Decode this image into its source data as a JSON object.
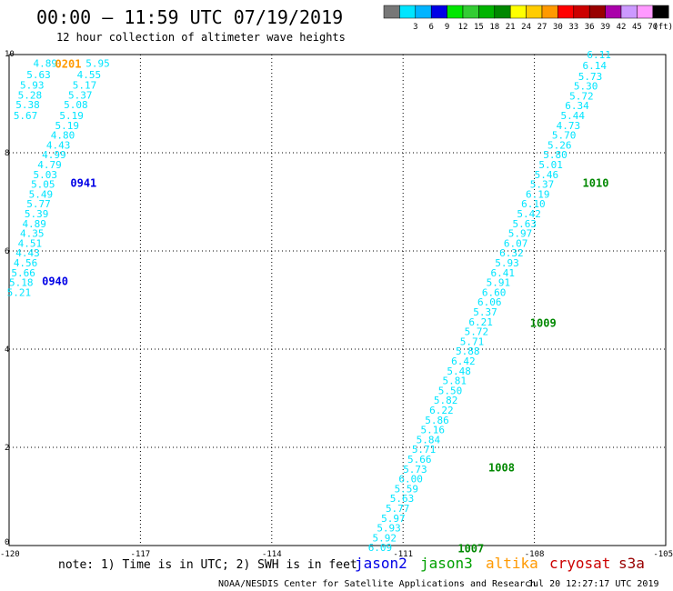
{
  "header": {
    "title": "00:00 – 11:59 UTC 07/19/2019",
    "subtitle": "12 hour collection of altimeter wave heights"
  },
  "colorbar": {
    "unit": "(ft)",
    "bins": [
      {
        "color": "#777777",
        "label": ""
      },
      {
        "color": "#00e5ff",
        "label": "3"
      },
      {
        "color": "#00b4ff",
        "label": "6"
      },
      {
        "color": "#0000e6",
        "label": "9"
      },
      {
        "color": "#00e600",
        "label": "12"
      },
      {
        "color": "#33cc33",
        "label": "15"
      },
      {
        "color": "#00b400",
        "label": "18"
      },
      {
        "color": "#008800",
        "label": "21"
      },
      {
        "color": "#ffff00",
        "label": "24"
      },
      {
        "color": "#ffcc00",
        "label": "27"
      },
      {
        "color": "#ff9900",
        "label": "30"
      },
      {
        "color": "#ff0000",
        "label": "33"
      },
      {
        "color": "#cc0000",
        "label": "36"
      },
      {
        "color": "#990000",
        "label": "39"
      },
      {
        "color": "#aa00aa",
        "label": "42"
      },
      {
        "color": "#cc99ff",
        "label": "45"
      },
      {
        "color": "#ff99ff",
        "label": "70"
      },
      {
        "color": "#000000",
        "label": ""
      }
    ]
  },
  "axes": {
    "x_ticks": [
      "-120",
      "-117",
      "-114",
      "-111",
      "-108",
      "-105"
    ],
    "x_values": [
      -120,
      -117,
      -114,
      -111,
      -108,
      -105
    ],
    "y_ticks": [
      "0",
      "2",
      "4",
      "6",
      "8",
      "10"
    ],
    "y_values": [
      0,
      2,
      4,
      6,
      8,
      10
    ],
    "lon_range": [
      -120,
      -105
    ],
    "lat_range": [
      0,
      10
    ]
  },
  "passes": [
    {
      "color": "#00e5ff",
      "rows": [
        {
          "lat": 9.82,
          "labels": [
            [
              "-119.45",
              "4.89"
            ],
            [
              "-118.25",
              "5.95"
            ]
          ]
        },
        {
          "lat": 9.59,
          "labels": [
            [
              "-119.60",
              "5.63"
            ],
            [
              "-118.45",
              "4.55"
            ]
          ]
        },
        {
          "lat": 9.38,
          "labels": [
            [
              "-119.75",
              "5.93"
            ],
            [
              "-118.55",
              "5.17"
            ]
          ]
        },
        {
          "lat": 9.18,
          "labels": [
            [
              "-119.80",
              "5.28"
            ],
            [
              "-118.65",
              "5.37"
            ]
          ]
        },
        {
          "lat": 8.98,
          "labels": [
            [
              "-119.85",
              "5.38"
            ],
            [
              "-118.75",
              "5.08"
            ]
          ]
        },
        {
          "lat": 8.76,
          "labels": [
            [
              "-119.90",
              "5.67"
            ],
            [
              "-118.85",
              "5.19"
            ]
          ]
        },
        {
          "lat": 8.56,
          "labels": [
            [
              "-118.95",
              "5.19"
            ]
          ]
        },
        {
          "lat": 8.36,
          "labels": [
            [
              "-119.05",
              "4.80"
            ]
          ]
        },
        {
          "lat": 8.16,
          "labels": [
            [
              "-119.15",
              "4.43"
            ]
          ]
        },
        {
          "lat": 7.96,
          "labels": [
            [
              "-119.25",
              "4.99"
            ]
          ]
        },
        {
          "lat": 7.76,
          "labels": [
            [
              "-119.35",
              "4.79"
            ]
          ]
        },
        {
          "lat": 7.56,
          "labels": [
            [
              "-119.45",
              "5.03"
            ]
          ]
        },
        {
          "lat": 7.36,
          "labels": [
            [
              "-119.50",
              "5.05"
            ]
          ]
        },
        {
          "lat": 7.16,
          "labels": [
            [
              "-119.55",
              "5.49"
            ]
          ]
        },
        {
          "lat": 6.96,
          "labels": [
            [
              "-119.60",
              "5.77"
            ]
          ]
        },
        {
          "lat": 6.76,
          "labels": [
            [
              "-119.65",
              "5.39"
            ]
          ]
        },
        {
          "lat": 6.56,
          "labels": [
            [
              "-119.70",
              "4.89"
            ]
          ]
        },
        {
          "lat": 6.36,
          "labels": [
            [
              "-119.75",
              "4.35"
            ]
          ]
        },
        {
          "lat": 6.16,
          "labels": [
            [
              "-119.80",
              "4.51"
            ]
          ]
        },
        {
          "lat": 5.96,
          "labels": [
            [
              "-119.85",
              "4.43"
            ]
          ]
        },
        {
          "lat": 5.76,
          "labels": [
            [
              "-119.90",
              "4.56"
            ]
          ]
        },
        {
          "lat": 5.56,
          "labels": [
            [
              "-119.95",
              "5.66"
            ]
          ]
        },
        {
          "lat": 5.36,
          "labels": [
            [
              "-120.00",
              "5.18"
            ]
          ]
        },
        {
          "lat": 5.16,
          "labels": [
            [
              "-120.05",
              "5.21"
            ]
          ]
        }
      ]
    },
    {
      "color": "#00e5ff",
      "rows": [
        {
          "lat": 10.0,
          "labels": [
            [
              "-106.8",
              "6.11"
            ]
          ]
        },
        {
          "lat": 9.78,
          "labels": [
            [
              "-106.9",
              "6.14"
            ]
          ]
        },
        {
          "lat": 9.56,
          "labels": [
            [
              "-107.0",
              "5.73"
            ]
          ]
        },
        {
          "lat": 9.36,
          "labels": [
            [
              "-107.1",
              "5.30"
            ]
          ]
        },
        {
          "lat": 9.16,
          "labels": [
            [
              "-107.2",
              "5.72"
            ]
          ]
        },
        {
          "lat": 8.96,
          "labels": [
            [
              "-107.3",
              "6.34"
            ]
          ]
        },
        {
          "lat": 8.76,
          "labels": [
            [
              "-107.4",
              "5.44"
            ]
          ]
        },
        {
          "lat": 8.56,
          "labels": [
            [
              "-107.5",
              "4.73"
            ]
          ]
        },
        {
          "lat": 8.36,
          "labels": [
            [
              "-107.6",
              "5.70"
            ]
          ]
        },
        {
          "lat": 8.16,
          "labels": [
            [
              "-107.7",
              "5.26"
            ]
          ]
        },
        {
          "lat": 7.96,
          "labels": [
            [
              "-107.8",
              "5.80"
            ]
          ]
        },
        {
          "lat": 7.76,
          "labels": [
            [
              "-107.9",
              "5.01"
            ]
          ]
        },
        {
          "lat": 7.56,
          "labels": [
            [
              "-108.0",
              "5.46"
            ]
          ]
        },
        {
          "lat": 7.36,
          "labels": [
            [
              "-108.1",
              "5.37"
            ]
          ]
        },
        {
          "lat": 7.16,
          "labels": [
            [
              "-108.2",
              "6.19"
            ]
          ]
        },
        {
          "lat": 6.96,
          "labels": [
            [
              "-108.3",
              "6.10"
            ]
          ]
        },
        {
          "lat": 6.76,
          "labels": [
            [
              "-108.4",
              "5.42"
            ]
          ]
        },
        {
          "lat": 6.56,
          "labels": [
            [
              "-108.5",
              "5.63"
            ]
          ]
        },
        {
          "lat": 6.36,
          "labels": [
            [
              "-108.6",
              "5.97"
            ]
          ]
        },
        {
          "lat": 6.16,
          "labels": [
            [
              "-108.7",
              "6.07"
            ]
          ]
        },
        {
          "lat": 5.96,
          "labels": [
            [
              "-108.8",
              "6.32"
            ]
          ]
        },
        {
          "lat": 5.76,
          "labels": [
            [
              "-108.9",
              "5.93"
            ]
          ]
        },
        {
          "lat": 5.56,
          "labels": [
            [
              "-109.0",
              "6.41"
            ]
          ]
        },
        {
          "lat": 5.36,
          "labels": [
            [
              "-109.1",
              "5.91"
            ]
          ]
        },
        {
          "lat": 5.16,
          "labels": [
            [
              "-109.2",
              "6.60"
            ]
          ]
        },
        {
          "lat": 4.96,
          "labels": [
            [
              "-109.3",
              "6.06"
            ]
          ]
        },
        {
          "lat": 4.76,
          "labels": [
            [
              "-109.4",
              "5.37"
            ]
          ]
        },
        {
          "lat": 4.56,
          "labels": [
            [
              "-109.5",
              "6.21"
            ]
          ]
        },
        {
          "lat": 4.36,
          "labels": [
            [
              "-109.6",
              "5.72"
            ]
          ]
        },
        {
          "lat": 4.16,
          "labels": [
            [
              "-109.7",
              "5.71"
            ]
          ]
        },
        {
          "lat": 3.96,
          "labels": [
            [
              "-109.8",
              "5.88"
            ]
          ]
        },
        {
          "lat": 3.76,
          "labels": [
            [
              "-109.9",
              "6.42"
            ]
          ]
        },
        {
          "lat": 3.56,
          "labels": [
            [
              "-110.0",
              "5.48"
            ]
          ]
        },
        {
          "lat": 3.36,
          "labels": [
            [
              "-110.1",
              "5.81"
            ]
          ]
        },
        {
          "lat": 3.16,
          "labels": [
            [
              "-110.2",
              "5.50"
            ]
          ]
        },
        {
          "lat": 2.96,
          "labels": [
            [
              "-110.3",
              "5.82"
            ]
          ]
        },
        {
          "lat": 2.76,
          "labels": [
            [
              "-110.4",
              "6.22"
            ]
          ]
        },
        {
          "lat": 2.56,
          "labels": [
            [
              "-110.5",
              "5.86"
            ]
          ]
        },
        {
          "lat": 2.36,
          "labels": [
            [
              "-110.6",
              "5.16"
            ]
          ]
        },
        {
          "lat": 2.16,
          "labels": [
            [
              "-110.7",
              "5.84"
            ]
          ]
        },
        {
          "lat": 1.96,
          "labels": [
            [
              "-110.8",
              "5.71"
            ]
          ]
        },
        {
          "lat": 1.76,
          "labels": [
            [
              "-110.9",
              "5.66"
            ]
          ]
        },
        {
          "lat": 1.56,
          "labels": [
            [
              "-111.0",
              "5.73"
            ]
          ]
        },
        {
          "lat": 1.36,
          "labels": [
            [
              "-111.1",
              "6.00"
            ]
          ]
        },
        {
          "lat": 1.16,
          "labels": [
            [
              "-111.2",
              "5.59"
            ]
          ]
        },
        {
          "lat": 0.96,
          "labels": [
            [
              "-111.3",
              "5.63"
            ]
          ]
        },
        {
          "lat": 0.76,
          "labels": [
            [
              "-111.4",
              "5.77"
            ]
          ]
        },
        {
          "lat": 0.56,
          "labels": [
            [
              "-111.5",
              "5.97"
            ]
          ]
        },
        {
          "lat": 0.36,
          "labels": [
            [
              "-111.6",
              "5.93"
            ]
          ]
        },
        {
          "lat": 0.16,
          "labels": [
            [
              "-111.7",
              "5.92"
            ]
          ]
        },
        {
          "lat": -0.04,
          "labels": [
            [
              "-111.8",
              "6.09"
            ]
          ]
        }
      ]
    }
  ],
  "time_labels": [
    {
      "text": "0201",
      "color": "#ff9900",
      "lon": -118.95,
      "lat": 9.82
    },
    {
      "text": "0941",
      "color": "#0000e6",
      "lon": -118.6,
      "lat": 7.4
    },
    {
      "text": "0940",
      "color": "#0000e6",
      "lon": -119.25,
      "lat": 5.4
    },
    {
      "text": "1010",
      "color": "#008800",
      "lon": -106.9,
      "lat": 7.4
    },
    {
      "text": "1009",
      "color": "#008800",
      "lon": -108.1,
      "lat": 4.55
    },
    {
      "text": "1008",
      "color": "#008800",
      "lon": -109.05,
      "lat": 1.6
    },
    {
      "text": "1007",
      "color": "#008800",
      "lon": -109.75,
      "lat": -0.05
    }
  ],
  "note": "note: 1) Time is in UTC; 2) SWH is in feet",
  "missions": [
    {
      "name": "jason2",
      "color": "#0000e6"
    },
    {
      "name": "jason3",
      "color": "#00a000"
    },
    {
      "name": "altika",
      "color": "#ff9900"
    },
    {
      "name": "cryosat",
      "color": "#cc0000"
    },
    {
      "name": "s3a",
      "color": "#990000"
    }
  ],
  "footer": {
    "credit": "NOAA/NESDIS Center for Satellite Applications and Research",
    "timestamp": "Jul 20 12:27:17 UTC 2019"
  }
}
